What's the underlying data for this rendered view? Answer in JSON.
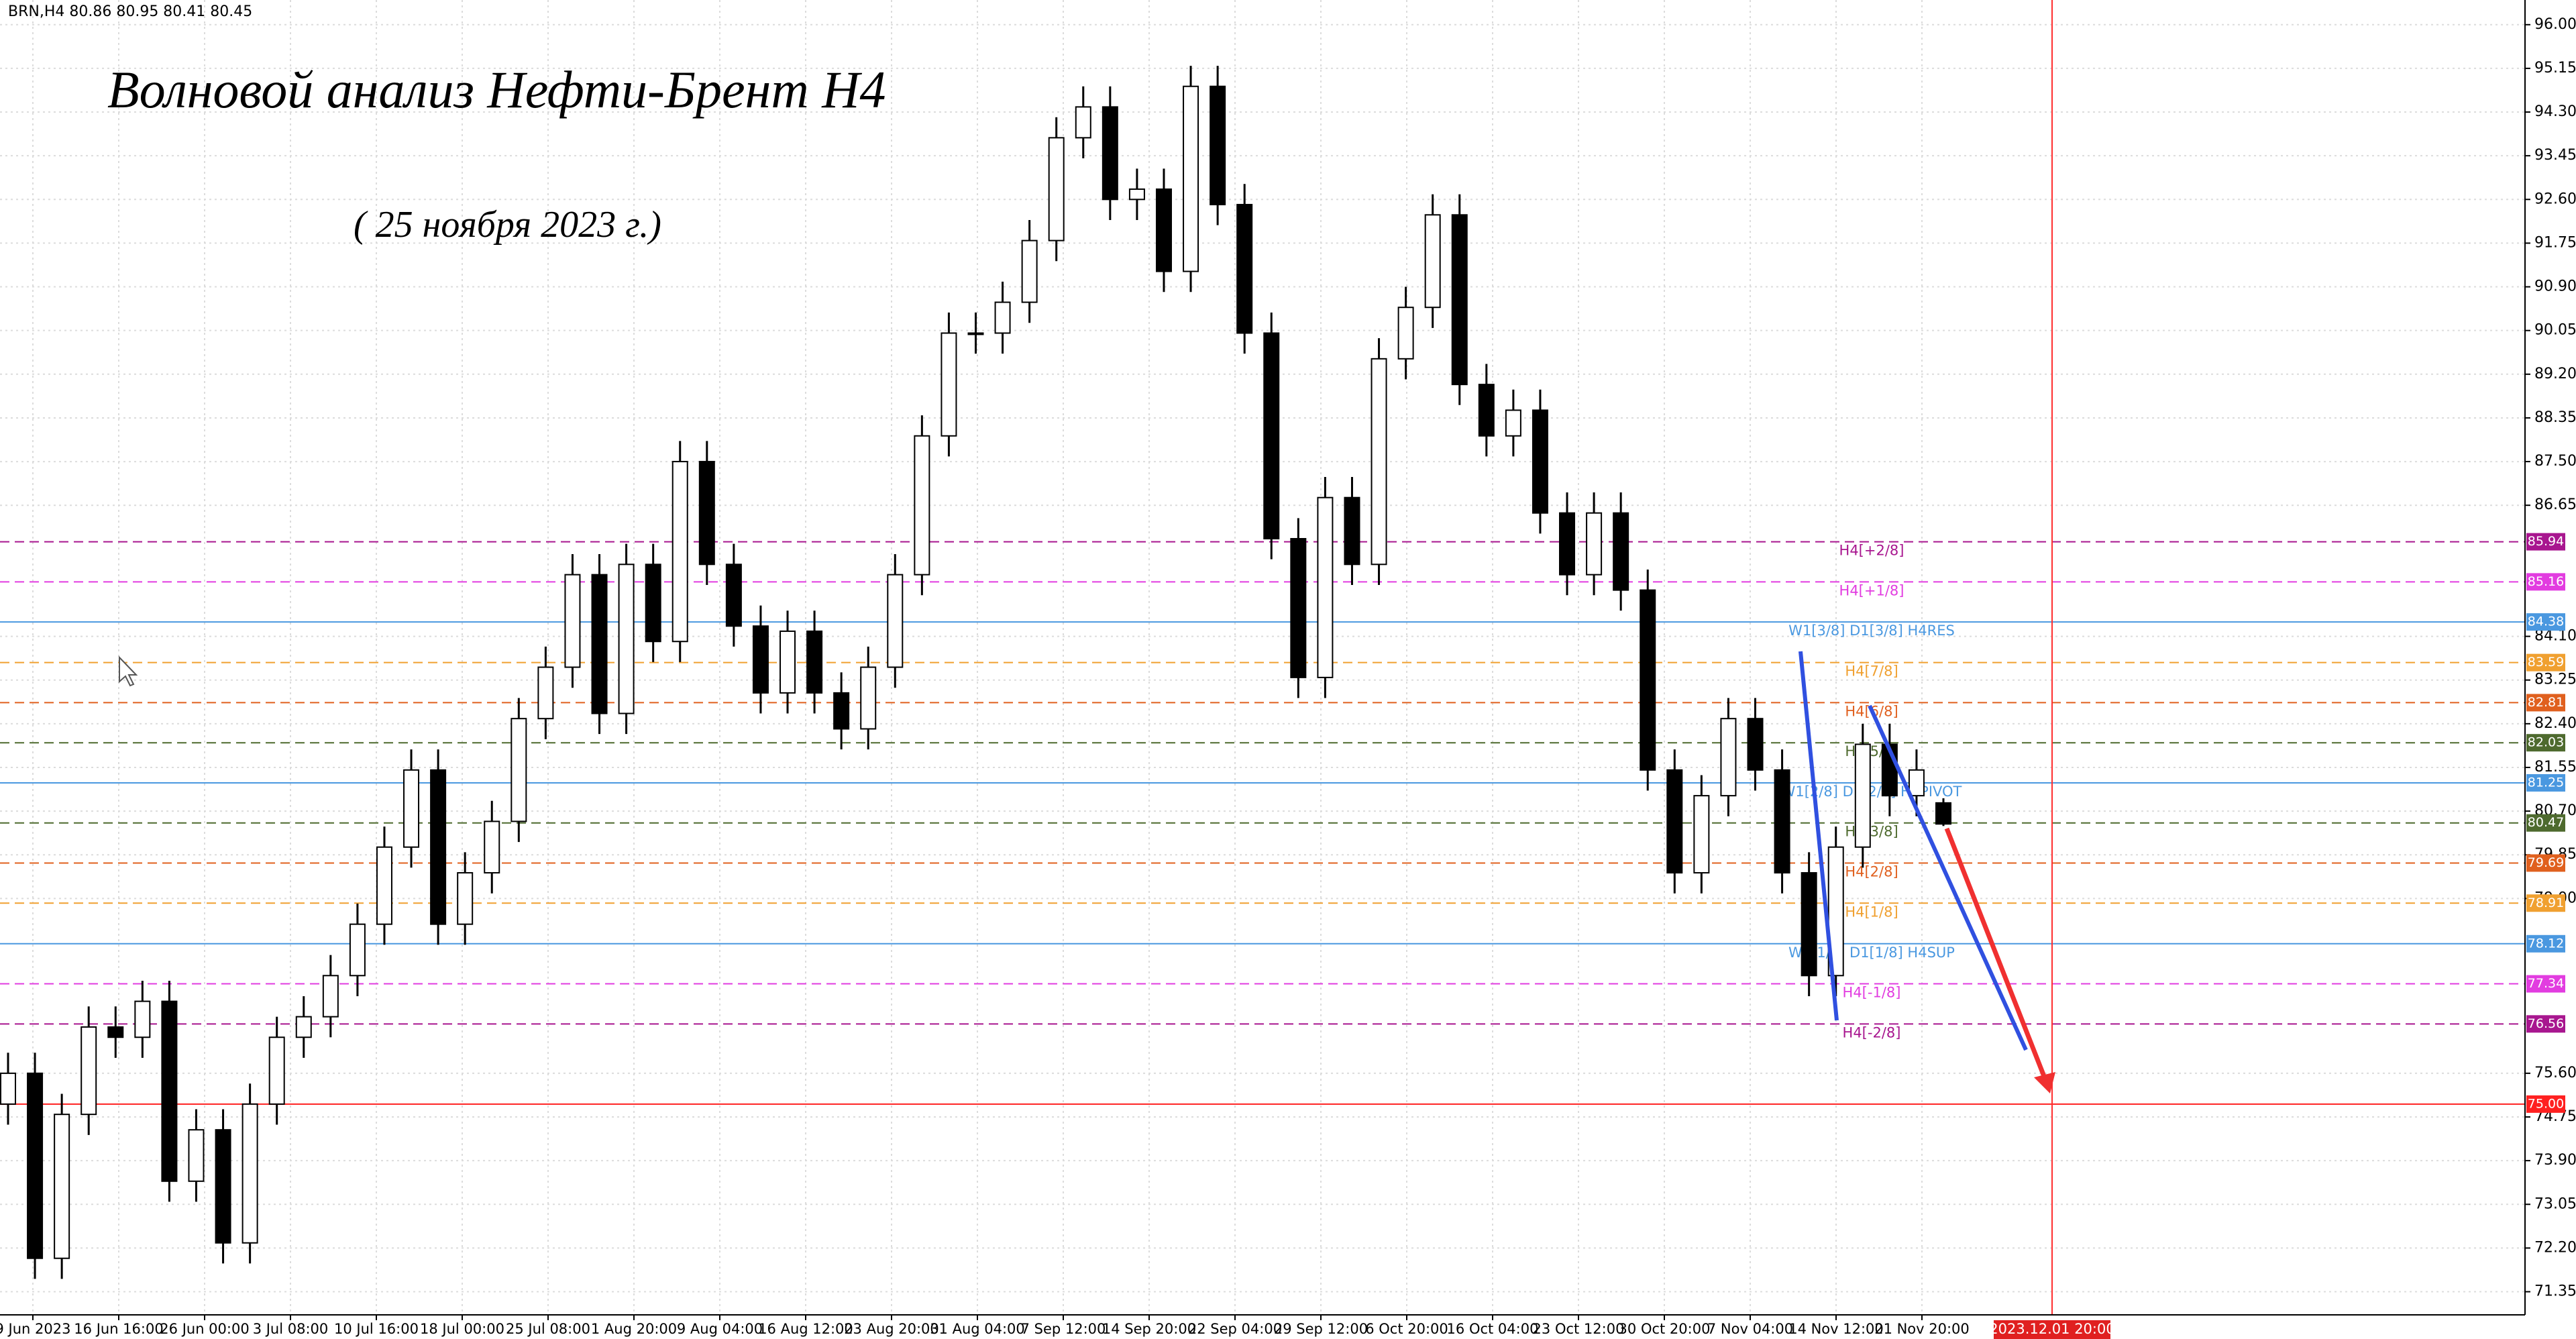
{
  "chart_data": {
    "type": "candlestick",
    "header": "BRN,H4  80.86 80.95 80.41 80.45",
    "title": "Волновой анализ Нефти-Брент H4",
    "subtitle": "( 25 ноября 2023 г.)",
    "open": [
      75.0,
      75.6,
      72.0,
      74.8,
      76.5,
      76.3,
      77.0,
      73.5,
      74.5,
      72.3,
      75.0,
      76.3,
      76.7,
      77.5,
      78.5,
      80.0,
      81.5,
      78.5,
      79.5,
      80.5,
      82.5,
      83.5,
      85.3,
      82.6,
      85.5,
      84.0,
      87.5,
      85.5,
      84.3,
      83.0,
      84.2,
      83.0,
      82.3,
      83.5,
      85.3,
      88.0,
      90.0,
      90.0,
      90.6,
      91.8,
      93.8,
      94.4,
      92.6,
      92.8,
      91.2,
      94.8,
      92.5,
      90.0,
      86.0,
      83.3,
      86.8,
      85.5,
      89.5,
      90.5,
      92.3,
      89.0,
      88.0,
      88.5,
      86.5,
      85.3,
      86.5,
      85.0,
      81.5,
      79.5,
      81.0,
      82.5,
      81.5,
      79.5,
      77.5,
      80.0,
      82.0,
      81.0,
      80.86
    ],
    "high": [
      76.0,
      76.0,
      75.2,
      76.9,
      76.9,
      77.4,
      77.4,
      74.9,
      74.9,
      75.4,
      76.7,
      77.1,
      77.9,
      78.9,
      80.4,
      81.9,
      81.9,
      79.9,
      80.9,
      82.9,
      83.9,
      85.7,
      85.7,
      85.9,
      85.9,
      87.9,
      87.9,
      85.9,
      84.7,
      84.6,
      84.6,
      83.4,
      83.9,
      85.7,
      88.4,
      90.4,
      90.4,
      91.0,
      92.2,
      94.2,
      94.8,
      94.8,
      93.2,
      93.2,
      95.2,
      95.2,
      92.9,
      90.4,
      86.4,
      87.2,
      87.2,
      89.9,
      90.9,
      92.7,
      92.7,
      89.4,
      88.9,
      88.9,
      86.9,
      86.9,
      86.9,
      85.4,
      81.9,
      81.4,
      82.9,
      82.9,
      81.9,
      79.9,
      80.4,
      82.4,
      82.4,
      81.9,
      80.95
    ],
    "low": [
      74.6,
      71.6,
      71.6,
      74.4,
      75.9,
      75.9,
      73.1,
      73.1,
      71.9,
      71.9,
      74.6,
      75.9,
      76.3,
      77.1,
      78.1,
      79.6,
      78.1,
      78.1,
      79.1,
      80.1,
      82.1,
      83.1,
      82.2,
      82.2,
      83.6,
      83.6,
      85.1,
      83.9,
      82.6,
      82.6,
      82.6,
      81.9,
      81.9,
      83.1,
      84.9,
      87.6,
      89.6,
      89.6,
      90.2,
      91.4,
      93.4,
      92.2,
      92.2,
      90.8,
      90.8,
      92.1,
      89.6,
      85.6,
      82.9,
      82.9,
      85.1,
      85.1,
      89.1,
      90.1,
      88.6,
      87.6,
      87.6,
      86.1,
      84.9,
      84.9,
      84.6,
      81.1,
      79.1,
      79.1,
      80.6,
      81.1,
      79.1,
      77.1,
      77.1,
      79.6,
      80.6,
      80.6,
      80.41
    ],
    "close": [
      75.6,
      72.0,
      74.8,
      76.5,
      76.3,
      77.0,
      73.5,
      74.5,
      72.3,
      75.0,
      76.3,
      76.7,
      77.5,
      78.5,
      80.0,
      81.5,
      78.5,
      79.5,
      80.5,
      82.5,
      83.5,
      85.3,
      82.6,
      85.5,
      84.0,
      87.5,
      85.5,
      84.3,
      83.0,
      84.2,
      83.0,
      82.3,
      83.5,
      85.3,
      88.0,
      90.0,
      90.0,
      90.6,
      91.8,
      93.8,
      94.4,
      92.6,
      92.8,
      91.2,
      94.8,
      92.5,
      90.0,
      86.0,
      83.3,
      86.8,
      85.5,
      89.5,
      90.5,
      92.3,
      89.0,
      88.0,
      88.5,
      86.5,
      85.3,
      86.5,
      85.0,
      81.5,
      79.5,
      81.0,
      82.5,
      81.5,
      79.5,
      77.5,
      80.0,
      82.0,
      81.0,
      81.5,
      80.45
    ],
    "xlabels": [
      "9 Jun 2023",
      "16 Jun 16:00",
      "26 Jun 00:00",
      "3 Jul 08:00",
      "10 Jul 16:00",
      "18 Jul 00:00",
      "25 Jul 08:00",
      "1 Aug 20:00",
      "9 Aug 04:00",
      "16 Aug 12:00",
      "23 Aug 20:00",
      "31 Aug 04:00",
      "7 Sep 12:00",
      "14 Sep 20:00",
      "22 Sep 04:00",
      "29 Sep 12:00",
      "6 Oct 20:00",
      "16 Oct 04:00",
      "23 Oct 12:00",
      "30 Oct 20:00",
      "7 Nov 04:00",
      "14 Nov 12:00",
      "21 Nov 20:00"
    ],
    "xlabel_current": "2023.12.01 20:00",
    "ylim": [
      70.9,
      96.48
    ],
    "yticks": [
      {
        "value": 96.0,
        "label": "96.00"
      },
      {
        "value": 95.15,
        "label": "95.15"
      },
      {
        "value": 94.3,
        "label": "94.30"
      },
      {
        "value": 93.45,
        "label": "93.45"
      },
      {
        "value": 92.6,
        "label": "92.60"
      },
      {
        "value": 91.75,
        "label": "91.75"
      },
      {
        "value": 90.9,
        "label": "90.90"
      },
      {
        "value": 90.05,
        "label": "90.05"
      },
      {
        "value": 89.2,
        "label": "89.20"
      },
      {
        "value": 88.35,
        "label": "88.35"
      },
      {
        "value": 87.5,
        "label": "87.50"
      },
      {
        "value": 86.65,
        "label": "86.65"
      },
      {
        "value": 84.1,
        "label": "84.10"
      },
      {
        "value": 83.25,
        "label": "83.25"
      },
      {
        "value": 82.4,
        "label": "82.40"
      },
      {
        "value": 81.55,
        "label": "81.55"
      },
      {
        "value": 80.7,
        "label": "80.70"
      },
      {
        "value": 79.85,
        "label": "79.85"
      },
      {
        "value": 79.0,
        "label": "79.00"
      },
      {
        "value": 75.6,
        "label": "75.60"
      },
      {
        "value": 74.75,
        "label": "74.75"
      },
      {
        "value": 73.9,
        "label": "73.90"
      },
      {
        "value": 73.05,
        "label": "73.05"
      },
      {
        "value": 72.2,
        "label": "72.20"
      },
      {
        "value": 71.35,
        "label": "71.35"
      }
    ],
    "grid": true,
    "up_color": "#ffffff",
    "down_color": "#000000",
    "levels": {
      "names": [
        "H4[+2/8]",
        "H4[+1/8]",
        "W1[3/8] D1[3/8] H4RES",
        "H4[7/8]",
        "H4[6/8]",
        "H4[5/8]",
        "W1[2/8] D1[2/8] H4PIVOT",
        "H4[3/8]",
        "H4[2/8]",
        "H4[1/8]",
        "W1[1/8] D1[1/8] H4SUP",
        "H4[-1/8]",
        "H4[-2/8]",
        null
      ],
      "values": [
        85.94,
        85.16,
        84.38,
        83.59,
        82.81,
        82.03,
        81.25,
        80.47,
        79.69,
        78.91,
        78.12,
        77.34,
        76.56,
        75.0
      ],
      "value_labels": [
        "85.94",
        "85.16",
        "84.38",
        "83.59",
        "82.81",
        "82.03",
        "81.25",
        "80.47",
        "79.69",
        "78.91",
        "78.12",
        "77.34",
        "76.56",
        "75.00"
      ],
      "colors": [
        "#a8168f",
        "#e23ce0",
        "#4a98e0",
        "#f0a030",
        "#e0601e",
        "#4e6a2e",
        "#4a98e0",
        "#4e6a2e",
        "#e0601e",
        "#f0a030",
        "#4a98e0",
        "#e23ce0",
        "#a8168f",
        "#ff2020"
      ],
      "styles": [
        "dashed",
        "dashed",
        "solid",
        "dashed",
        "dashed",
        "dashed",
        "solid",
        "dashed",
        "dashed",
        "dashed",
        "solid",
        "dashed",
        "dashed",
        "solid"
      ]
    }
  }
}
